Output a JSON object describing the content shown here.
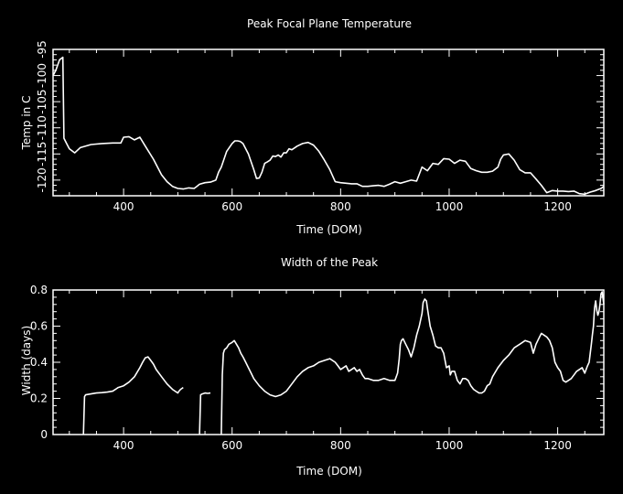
{
  "chart_data": [
    {
      "type": "line",
      "title": "Peak Focal Plane Temperature",
      "xlabel": "Time (DOM)",
      "ylabel": "Temp in C",
      "xlim": [
        270,
        1285
      ],
      "ylim": [
        -123,
        -95
      ],
      "xticks": [
        400,
        600,
        800,
        1000,
        1200
      ],
      "yticks": [
        -120,
        -115,
        -110,
        -105,
        -100,
        -95
      ],
      "x": [
        270,
        275,
        282,
        288,
        290,
        295,
        300,
        310,
        320,
        340,
        360,
        380,
        395,
        400,
        410,
        420,
        430,
        440,
        455,
        470,
        480,
        490,
        500,
        510,
        520,
        530,
        535,
        540,
        550,
        560,
        570,
        575,
        580,
        590,
        600,
        605,
        610,
        615,
        620,
        630,
        640,
        645,
        650,
        655,
        660,
        665,
        670,
        675,
        680,
        685,
        690,
        695,
        700,
        705,
        710,
        720,
        730,
        740,
        750,
        760,
        770,
        780,
        790,
        800,
        810,
        820,
        830,
        840,
        850,
        860,
        870,
        880,
        890,
        900,
        910,
        920,
        930,
        940,
        950,
        960,
        970,
        980,
        990,
        1000,
        1010,
        1020,
        1030,
        1040,
        1050,
        1060,
        1070,
        1080,
        1090,
        1095,
        1100,
        1110,
        1120,
        1130,
        1140,
        1150,
        1160,
        1170,
        1180,
        1190,
        1200,
        1210,
        1220,
        1230,
        1240,
        1250,
        1260,
        1270,
        1275,
        1280,
        1285
      ],
      "values": [
        -100,
        -99,
        -97,
        -96.5,
        -112,
        -113,
        -114,
        -114.8,
        -113.8,
        -113.2,
        -113.0,
        -112.9,
        -112.9,
        -111.8,
        -111.7,
        -112.3,
        -111.8,
        -113.5,
        -116.0,
        -119.0,
        -120.3,
        -121.2,
        -121.6,
        -121.7,
        -121.5,
        -121.6,
        -121.2,
        -120.8,
        -120.5,
        -120.4,
        -120.0,
        -118.5,
        -117.5,
        -114.5,
        -113.0,
        -112.5,
        -112.5,
        -112.6,
        -113.0,
        -115.0,
        -118.0,
        -119.7,
        -119.6,
        -118.5,
        -116.8,
        -116.5,
        -116.2,
        -115.4,
        -115.5,
        -115.2,
        -115.6,
        -114.8,
        -114.8,
        -114.0,
        -114.2,
        -113.5,
        -113.0,
        -112.8,
        -113.3,
        -114.5,
        -116.2,
        -118.0,
        -120.3,
        -120.5,
        -120.6,
        -120.7,
        -120.7,
        -121.2,
        -121.2,
        -121.1,
        -121.0,
        -121.2,
        -120.8,
        -120.3,
        -120.6,
        -120.3,
        -120.0,
        -120.2,
        -117.5,
        -118.2,
        -116.8,
        -117.0,
        -115.9,
        -116.0,
        -116.8,
        -116.2,
        -116.4,
        -117.8,
        -118.2,
        -118.5,
        -118.5,
        -118.3,
        -117.5,
        -116.0,
        -115.2,
        -115.0,
        -116.2,
        -118.0,
        -118.6,
        -118.6,
        -119.8,
        -121.0,
        -122.4,
        -122.0,
        -122.1,
        -122.1,
        -122.2,
        -122.1,
        -122.6,
        -122.7,
        -122.3,
        -122.0,
        -121.8,
        -121.6,
        -121.2
      ]
    },
    {
      "type": "line",
      "title": "Width of the Peak",
      "xlabel": "Time (DOM)",
      "ylabel": "Width (days)",
      "xlim": [
        270,
        1285
      ],
      "ylim": [
        0,
        0.8
      ],
      "xticks": [
        400,
        600,
        800,
        1000,
        1200
      ],
      "yticks": [
        0,
        0.2,
        0.4,
        0.6,
        0.8
      ],
      "series": [
        {
          "x": [
            326,
            328,
            330,
            340,
            350,
            360,
            370,
            380,
            390,
            400,
            410,
            420,
            430,
            435,
            440,
            445,
            450,
            455,
            460,
            470,
            480,
            490,
            495,
            500,
            502,
            505,
            510
          ],
          "values": [
            0,
            0.21,
            0.22,
            0.225,
            0.23,
            0.232,
            0.235,
            0.24,
            0.26,
            0.27,
            0.29,
            0.32,
            0.37,
            0.4,
            0.425,
            0.43,
            0.41,
            0.39,
            0.36,
            0.32,
            0.28,
            0.25,
            0.24,
            0.23,
            0.24,
            0.25,
            0.26
          ]
        },
        {
          "x": [
            540,
            542,
            545,
            550,
            555,
            560
          ],
          "values": [
            0,
            0.22,
            0.225,
            0.23,
            0.228,
            0.23
          ]
        },
        {
          "x": [
            580,
            582,
            584,
            586,
            590,
            594,
            600,
            604,
            608,
            612,
            616,
            620,
            625,
            630,
            635,
            640,
            650,
            660,
            670,
            680,
            690,
            700,
            710,
            720,
            730,
            740,
            750,
            760,
            770,
            780,
            790,
            795,
            800,
            805,
            810,
            815,
            820,
            825,
            830,
            835,
            840,
            845,
            850,
            860,
            870,
            880,
            890,
            900,
            905,
            908,
            910,
            912,
            915,
            920,
            925,
            930,
            935,
            940,
            945,
            950,
            952,
            955,
            958,
            960,
            962,
            965,
            970,
            975,
            980,
            985,
            990,
            995,
            1000,
            1002,
            1005,
            1010,
            1015,
            1020,
            1025,
            1030,
            1035,
            1040,
            1045,
            1050,
            1055,
            1060,
            1065,
            1070,
            1075,
            1080,
            1090,
            1100,
            1110,
            1120,
            1130,
            1140,
            1150,
            1155,
            1160,
            1165,
            1170,
            1175,
            1180,
            1185,
            1190,
            1195,
            1200,
            1205,
            1210,
            1215,
            1220,
            1225,
            1230,
            1235,
            1240,
            1245,
            1250,
            1255,
            1258,
            1260,
            1262,
            1264,
            1266,
            1268,
            1270,
            1272,
            1274,
            1276,
            1278,
            1280,
            1282,
            1285
          ],
          "values": [
            0,
            0.33,
            0.45,
            0.47,
            0.48,
            0.5,
            0.51,
            0.52,
            0.5,
            0.48,
            0.45,
            0.43,
            0.4,
            0.37,
            0.34,
            0.31,
            0.27,
            0.24,
            0.22,
            0.21,
            0.22,
            0.24,
            0.28,
            0.32,
            0.35,
            0.37,
            0.38,
            0.4,
            0.41,
            0.42,
            0.4,
            0.38,
            0.36,
            0.37,
            0.38,
            0.35,
            0.36,
            0.37,
            0.35,
            0.36,
            0.33,
            0.31,
            0.31,
            0.3,
            0.3,
            0.31,
            0.3,
            0.3,
            0.34,
            0.42,
            0.5,
            0.52,
            0.53,
            0.5,
            0.47,
            0.43,
            0.48,
            0.55,
            0.6,
            0.67,
            0.73,
            0.75,
            0.74,
            0.7,
            0.66,
            0.6,
            0.55,
            0.49,
            0.48,
            0.48,
            0.45,
            0.37,
            0.38,
            0.33,
            0.35,
            0.35,
            0.3,
            0.28,
            0.31,
            0.31,
            0.3,
            0.27,
            0.25,
            0.24,
            0.23,
            0.23,
            0.24,
            0.27,
            0.28,
            0.32,
            0.37,
            0.41,
            0.44,
            0.48,
            0.5,
            0.52,
            0.51,
            0.45,
            0.5,
            0.53,
            0.56,
            0.55,
            0.54,
            0.52,
            0.48,
            0.4,
            0.37,
            0.35,
            0.3,
            0.29,
            0.3,
            0.31,
            0.33,
            0.35,
            0.36,
            0.37,
            0.34,
            0.38,
            0.4,
            0.45,
            0.5,
            0.55,
            0.6,
            0.7,
            0.74,
            0.69,
            0.66,
            0.68,
            0.72,
            0.78,
            0.79,
            0.72
          ]
        }
      ]
    }
  ]
}
